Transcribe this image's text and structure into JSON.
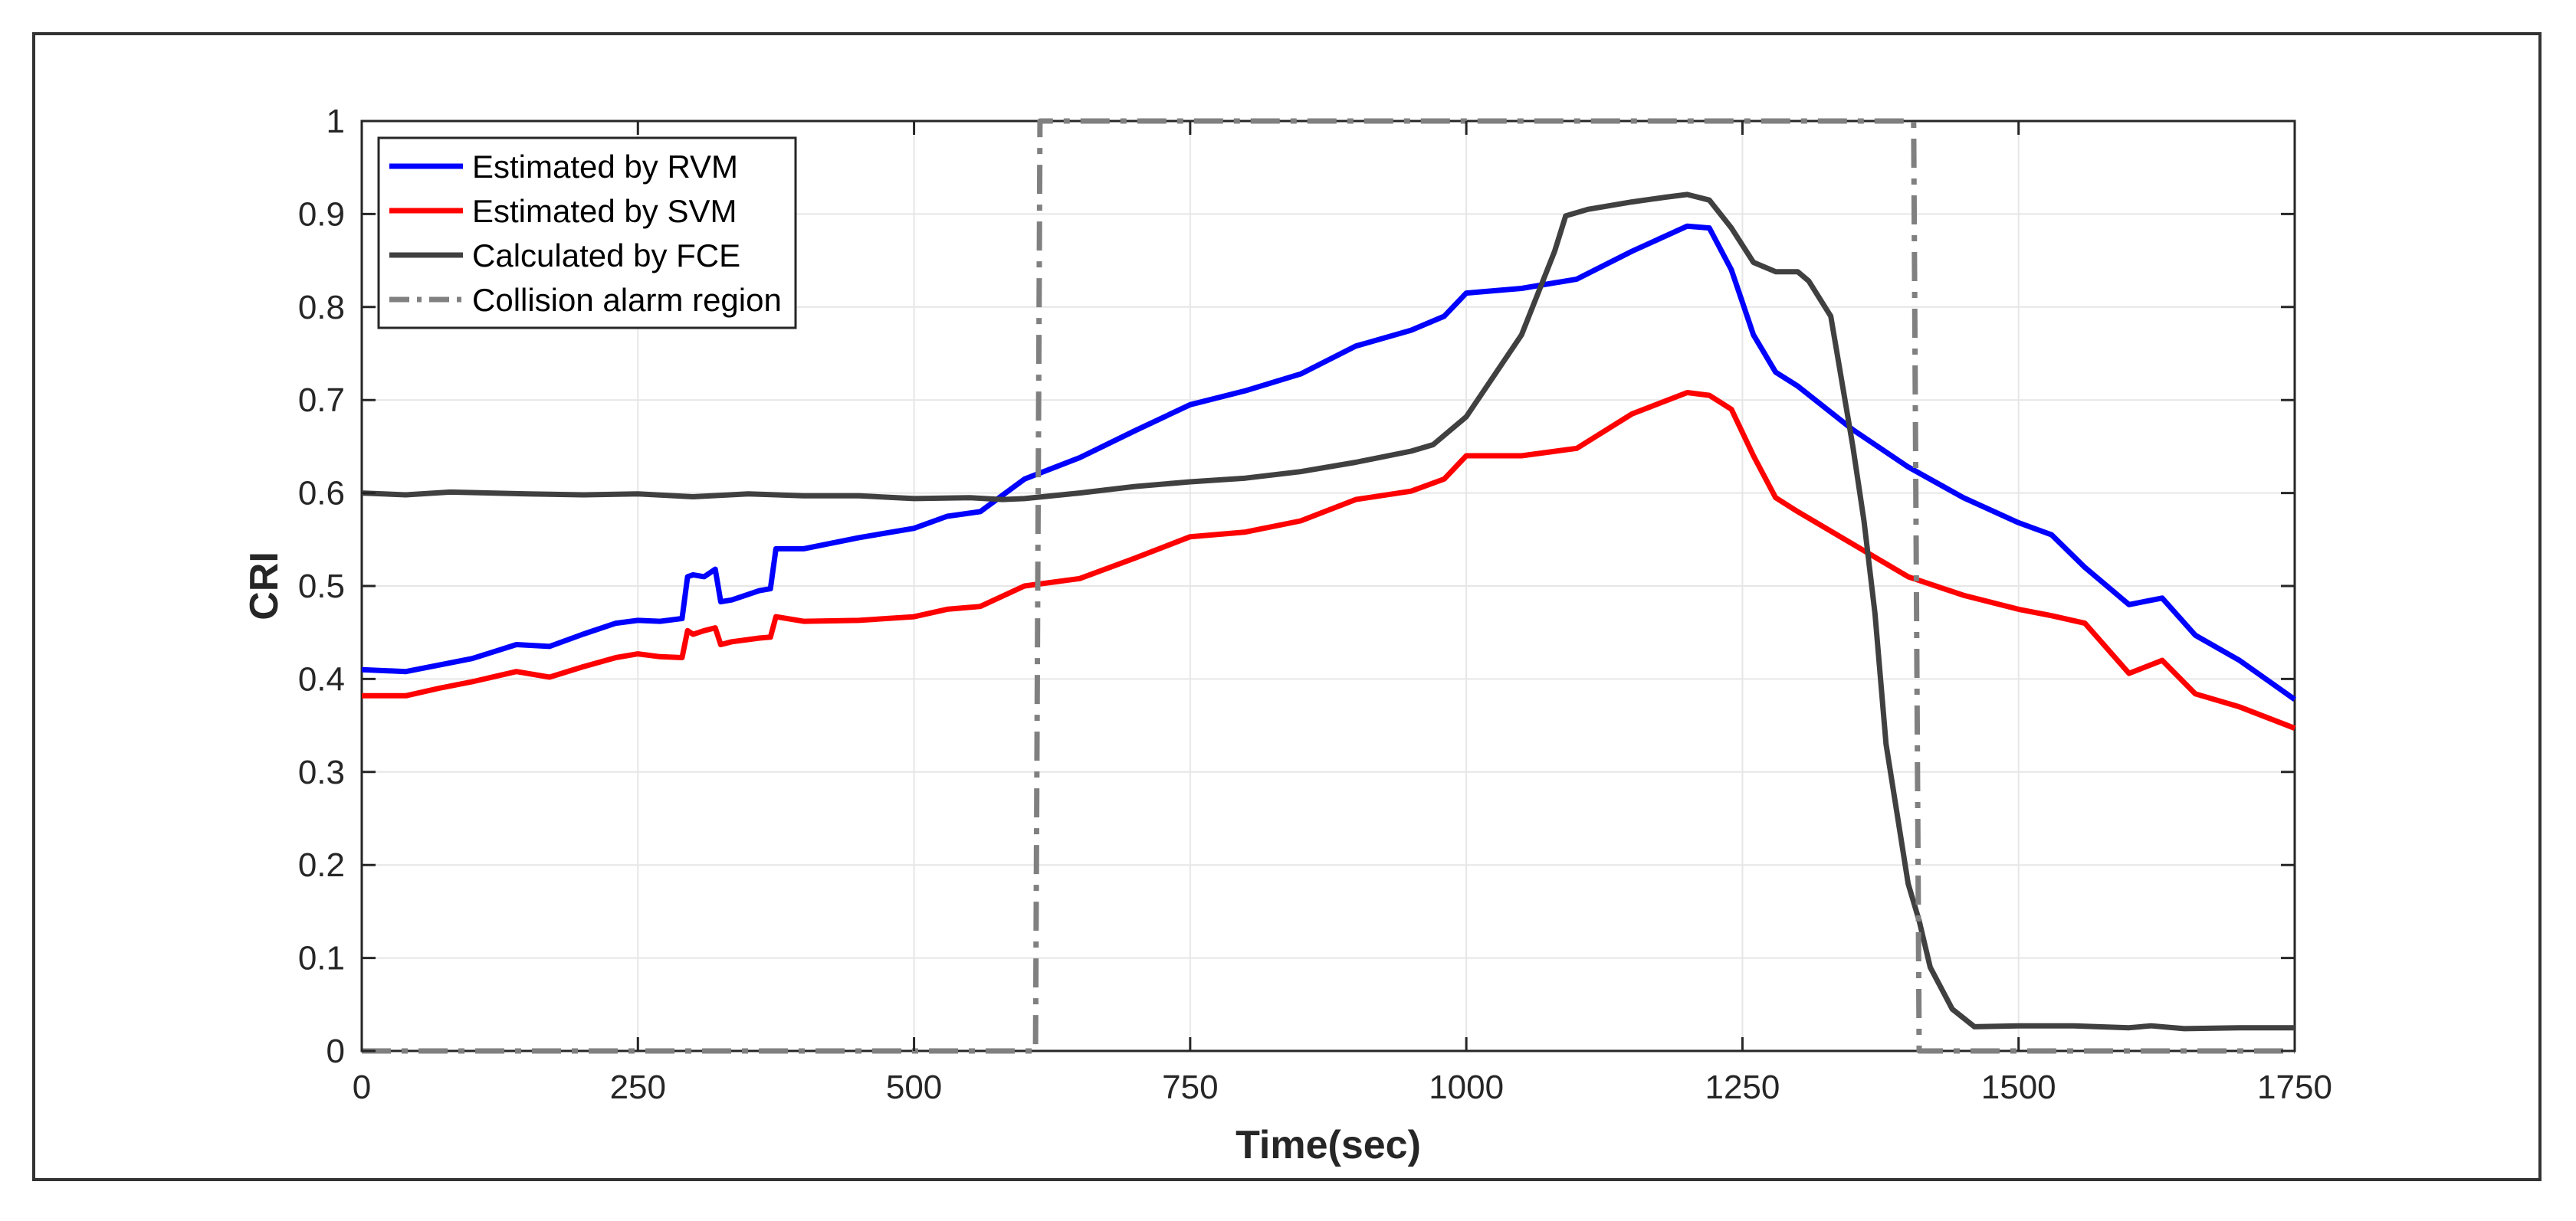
{
  "chart_data": {
    "type": "line",
    "title": "",
    "xlabel": "Time(sec)",
    "ylabel": "CRI",
    "xlim": [
      0,
      1750
    ],
    "ylim": [
      0,
      1
    ],
    "grid": true,
    "legend_position": "top-left",
    "x_ticks": [
      0,
      250,
      500,
      750,
      1000,
      1250,
      1500,
      1750
    ],
    "x_tick_labels": [
      "0",
      "250",
      "500",
      "750",
      "1000",
      "1250",
      "1500",
      "1750"
    ],
    "y_ticks": [
      0,
      0.1,
      0.2,
      0.3,
      0.4,
      0.5,
      0.6,
      0.7,
      0.8,
      0.9,
      1
    ],
    "y_tick_labels": [
      "0",
      "0.1",
      "0.2",
      "0.3",
      "0.4",
      "0.5",
      "0.6",
      "0.7",
      "0.8",
      "0.9",
      "1"
    ],
    "series": [
      {
        "name": "Estimated by RVM",
        "color": "#0000ff",
        "style": "solid",
        "x": [
          0,
          40,
          70,
          100,
          140,
          170,
          200,
          230,
          250,
          270,
          290,
          295,
          300,
          310,
          320,
          325,
          335,
          360,
          370,
          375,
          400,
          450,
          500,
          530,
          560,
          600,
          650,
          700,
          750,
          800,
          850,
          900,
          950,
          980,
          1000,
          1050,
          1100,
          1150,
          1200,
          1220,
          1240,
          1260,
          1280,
          1300,
          1350,
          1400,
          1450,
          1500,
          1530,
          1560,
          1600,
          1630,
          1660,
          1700,
          1750
        ],
        "y": [
          0.41,
          0.408,
          0.415,
          0.422,
          0.437,
          0.435,
          0.448,
          0.46,
          0.463,
          0.462,
          0.465,
          0.51,
          0.512,
          0.51,
          0.518,
          0.483,
          0.485,
          0.495,
          0.497,
          0.54,
          0.54,
          0.552,
          0.562,
          0.575,
          0.58,
          0.615,
          0.638,
          0.667,
          0.695,
          0.71,
          0.728,
          0.758,
          0.775,
          0.79,
          0.815,
          0.82,
          0.83,
          0.86,
          0.887,
          0.885,
          0.84,
          0.77,
          0.73,
          0.715,
          0.668,
          0.628,
          0.595,
          0.568,
          0.555,
          0.52,
          0.48,
          0.487,
          0.447,
          0.42,
          0.378
        ]
      },
      {
        "name": "Estimated by SVM",
        "color": "#ff0000",
        "style": "solid",
        "x": [
          0,
          40,
          70,
          100,
          140,
          170,
          200,
          230,
          250,
          270,
          290,
          295,
          300,
          310,
          320,
          325,
          335,
          360,
          370,
          375,
          400,
          450,
          500,
          530,
          560,
          600,
          650,
          700,
          750,
          800,
          850,
          900,
          950,
          980,
          1000,
          1050,
          1100,
          1150,
          1200,
          1220,
          1240,
          1260,
          1280,
          1300,
          1350,
          1400,
          1450,
          1500,
          1530,
          1560,
          1600,
          1630,
          1660,
          1700,
          1750
        ],
        "y": [
          0.382,
          0.382,
          0.39,
          0.397,
          0.408,
          0.402,
          0.413,
          0.423,
          0.427,
          0.424,
          0.423,
          0.452,
          0.448,
          0.452,
          0.455,
          0.437,
          0.44,
          0.444,
          0.445,
          0.467,
          0.462,
          0.463,
          0.467,
          0.475,
          0.478,
          0.5,
          0.508,
          0.53,
          0.553,
          0.558,
          0.57,
          0.593,
          0.602,
          0.615,
          0.64,
          0.64,
          0.648,
          0.685,
          0.708,
          0.705,
          0.69,
          0.64,
          0.595,
          0.58,
          0.545,
          0.51,
          0.49,
          0.475,
          0.468,
          0.46,
          0.406,
          0.42,
          0.384,
          0.37,
          0.347
        ]
      },
      {
        "name": "Calculated by FCE",
        "color": "#404040",
        "style": "solid",
        "x": [
          0,
          40,
          80,
          150,
          200,
          250,
          300,
          350,
          400,
          450,
          500,
          550,
          580,
          600,
          650,
          700,
          750,
          800,
          850,
          900,
          950,
          970,
          1000,
          1050,
          1080,
          1090,
          1110,
          1150,
          1180,
          1200,
          1220,
          1240,
          1260,
          1280,
          1300,
          1310,
          1330,
          1350,
          1360,
          1370,
          1380,
          1400,
          1410,
          1420,
          1440,
          1460,
          1500,
          1550,
          1600,
          1620,
          1650,
          1700,
          1750
        ],
        "y": [
          0.6,
          0.598,
          0.601,
          0.599,
          0.598,
          0.599,
          0.596,
          0.599,
          0.597,
          0.597,
          0.594,
          0.595,
          0.593,
          0.594,
          0.6,
          0.607,
          0.612,
          0.616,
          0.623,
          0.633,
          0.645,
          0.652,
          0.682,
          0.77,
          0.86,
          0.898,
          0.905,
          0.913,
          0.918,
          0.921,
          0.915,
          0.885,
          0.848,
          0.838,
          0.838,
          0.828,
          0.79,
          0.65,
          0.57,
          0.47,
          0.33,
          0.18,
          0.14,
          0.09,
          0.045,
          0.026,
          0.027,
          0.027,
          0.025,
          0.027,
          0.024,
          0.025,
          0.025
        ]
      },
      {
        "name": "Collision alarm region",
        "color": "#808080",
        "style": "dashdot",
        "x": [
          0,
          610,
          614,
          1405,
          1410,
          1750
        ],
        "y": [
          0,
          0,
          1,
          1,
          0,
          0
        ]
      }
    ]
  }
}
